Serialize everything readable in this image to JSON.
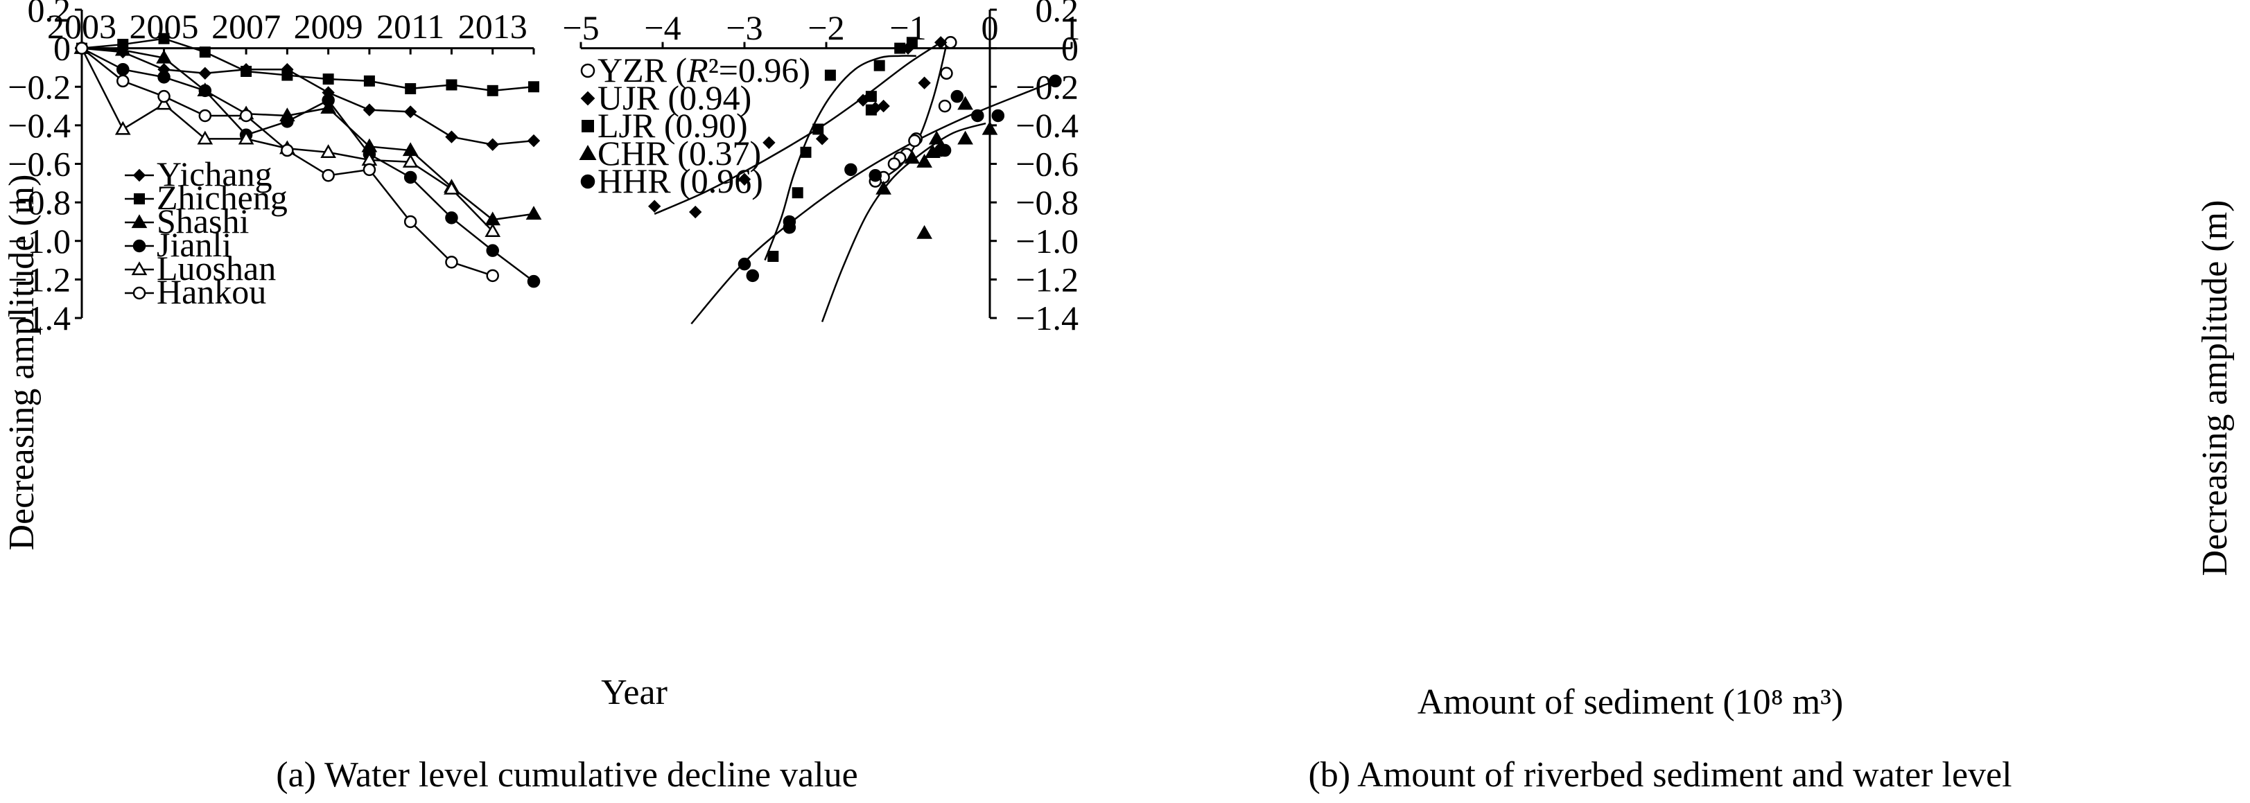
{
  "chart_data": [
    {
      "type": "line",
      "caption": "(a) Water level cumulative decline value",
      "xlabel": "Year",
      "ylabel": "Decreasing amplitude (m)",
      "xlim": [
        2003,
        2014
      ],
      "ylim": [
        -1.4,
        0.2
      ],
      "x_ticks": [
        "2003",
        "2005",
        "2007",
        "2009",
        "2011",
        "2013"
      ],
      "y_ticks": [
        "0.2",
        "0",
        "−0.2",
        "−0.4",
        "−0.6",
        "−0.8",
        "−1.0",
        "−1.2",
        "−1.4"
      ],
      "x": [
        2003,
        2004,
        2005,
        2006,
        2007,
        2008,
        2009,
        2010,
        2011,
        2012,
        2013,
        2014
      ],
      "series": [
        {
          "name": "Yichang",
          "marker": "diamond",
          "values": [
            0,
            -0.02,
            -0.11,
            -0.13,
            -0.11,
            -0.11,
            -0.23,
            -0.32,
            -0.33,
            -0.46,
            -0.5,
            -0.48
          ]
        },
        {
          "name": "Zhicheng",
          "marker": "square",
          "values": [
            0,
            0.02,
            0.05,
            -0.02,
            -0.12,
            -0.14,
            -0.16,
            -0.17,
            -0.21,
            -0.19,
            -0.22,
            -0.2
          ]
        },
        {
          "name": "Shashi",
          "marker": "triangle",
          "values": [
            0,
            -0.01,
            -0.05,
            -0.22,
            -0.34,
            -0.35,
            -0.31,
            -0.51,
            -0.53,
            -0.72,
            -0.89,
            -0.86
          ]
        },
        {
          "name": "Jianli",
          "marker": "circle",
          "values": [
            0,
            -0.11,
            -0.15,
            -0.22,
            -0.45,
            -0.38,
            -0.27,
            -0.55,
            -0.67,
            -0.88,
            -1.05,
            -1.21
          ]
        },
        {
          "name": "Luoshan",
          "marker": "triangle-open",
          "values": [
            0,
            -0.42,
            -0.29,
            -0.47,
            -0.47,
            -0.52,
            -0.54,
            -0.58,
            -0.59,
            -0.73,
            -0.95,
            null
          ]
        },
        {
          "name": "Hankou",
          "marker": "circle-open",
          "values": [
            0,
            -0.17,
            -0.25,
            -0.35,
            -0.35,
            -0.53,
            -0.66,
            -0.63,
            -0.9,
            -1.11,
            -1.18,
            null
          ]
        }
      ]
    },
    {
      "type": "scatter",
      "caption": "(b) Amount of riverbed sediment and water level",
      "xlabel": "Amount of sediment (10⁸ m³)",
      "ylabel": "Decreasing amplitude (m)",
      "xlim": [
        -5,
        1
      ],
      "ylim": [
        -1.4,
        0.2
      ],
      "x_ticks": [
        "−5",
        "−4",
        "−3",
        "−2",
        "−1",
        "0",
        "1"
      ],
      "y_ticks": [
        "0.2",
        "0",
        "−0.2",
        "−0.4",
        "−0.6",
        "−0.8",
        "−1.0",
        "−1.2",
        "−1.4"
      ],
      "series": [
        {
          "name": "YZR",
          "legend_label": "YZR (R²=0.96)",
          "marker": "circle-open",
          "points": [
            [
              -0.48,
              0.03
            ],
            [
              -0.53,
              -0.13
            ],
            [
              -0.55,
              -0.3
            ],
            [
              -0.9,
              -0.47
            ],
            [
              -0.92,
              -0.48
            ],
            [
              -1.02,
              -0.55
            ],
            [
              -1.1,
              -0.57
            ],
            [
              -1.17,
              -0.6
            ],
            [
              -1.3,
              -0.67
            ],
            [
              -1.4,
              -0.69
            ]
          ],
          "fit": [
            [
              -0.52,
              0.04
            ],
            [
              -0.6,
              -0.11
            ],
            [
              -0.7,
              -0.27
            ],
            [
              -0.85,
              -0.45
            ],
            [
              -1.05,
              -0.59
            ],
            [
              -1.25,
              -0.66
            ],
            [
              -1.4,
              -0.69
            ]
          ]
        },
        {
          "name": "UJR",
          "legend_label": "UJR (0.94)",
          "marker": "diamond",
          "points": [
            [
              -4.1,
              -0.82
            ],
            [
              -3.6,
              -0.85
            ],
            [
              -3.0,
              -0.68
            ],
            [
              -2.7,
              -0.49
            ],
            [
              -2.05,
              -0.47
            ],
            [
              -1.55,
              -0.27
            ],
            [
              -1.4,
              -0.31
            ],
            [
              -1.3,
              -0.3
            ],
            [
              -1.0,
              0.0
            ],
            [
              -0.8,
              -0.18
            ],
            [
              -0.6,
              0.03
            ]
          ],
          "fit": [
            [
              -4.1,
              -0.86
            ],
            [
              -3.5,
              -0.75
            ],
            [
              -3.0,
              -0.64
            ],
            [
              -2.5,
              -0.52
            ],
            [
              -2.0,
              -0.39
            ],
            [
              -1.5,
              -0.24
            ],
            [
              -1.0,
              -0.08
            ],
            [
              -0.6,
              0.03
            ]
          ]
        },
        {
          "name": "LJR",
          "legend_label": "LJR (0.90)",
          "marker": "square",
          "points": [
            [
              -2.65,
              -1.08
            ],
            [
              -2.45,
              -0.92
            ],
            [
              -2.35,
              -0.75
            ],
            [
              -2.25,
              -0.54
            ],
            [
              -2.1,
              -0.42
            ],
            [
              -1.95,
              -0.14
            ],
            [
              -1.45,
              -0.32
            ],
            [
              -1.45,
              -0.25
            ],
            [
              -1.35,
              -0.09
            ],
            [
              -1.1,
              0.0
            ],
            [
              -0.95,
              0.03
            ]
          ],
          "fit": [
            [
              -2.75,
              -1.1
            ],
            [
              -2.55,
              -0.88
            ],
            [
              -2.4,
              -0.66
            ],
            [
              -2.2,
              -0.44
            ],
            [
              -1.95,
              -0.25
            ],
            [
              -1.65,
              -0.11
            ],
            [
              -1.35,
              -0.05
            ],
            [
              -1.1,
              -0.04
            ],
            [
              -0.9,
              -0.04
            ]
          ]
        },
        {
          "name": "CHR",
          "legend_label": "CHR (0.37)",
          "marker": "triangle",
          "points": [
            [
              -1.3,
              -0.73
            ],
            [
              -0.8,
              -0.96
            ],
            [
              -0.95,
              -0.57
            ],
            [
              -0.8,
              -0.59
            ],
            [
              -0.7,
              -0.54
            ],
            [
              -0.65,
              -0.47
            ],
            [
              -0.6,
              -0.53
            ],
            [
              -0.3,
              -0.29
            ],
            [
              -0.3,
              -0.47
            ],
            [
              0.0,
              -0.42
            ]
          ],
          "fit": [
            [
              -2.05,
              -1.42
            ],
            [
              -1.8,
              -1.14
            ],
            [
              -1.5,
              -0.86
            ],
            [
              -1.2,
              -0.68
            ],
            [
              -0.85,
              -0.55
            ],
            [
              -0.45,
              -0.44
            ],
            [
              -0.05,
              -0.39
            ]
          ]
        },
        {
          "name": "HHR",
          "legend_label": "HHR (0.96)",
          "marker": "circle",
          "points": [
            [
              -3.0,
              -1.12
            ],
            [
              -2.9,
              -1.18
            ],
            [
              -2.45,
              -0.9
            ],
            [
              -2.45,
              -0.93
            ],
            [
              -1.7,
              -0.63
            ],
            [
              -1.4,
              -0.66
            ],
            [
              -0.6,
              -0.53
            ],
            [
              -0.55,
              -0.53
            ],
            [
              -0.4,
              -0.25
            ],
            [
              -0.15,
              -0.35
            ],
            [
              0.1,
              -0.35
            ],
            [
              0.8,
              -0.17
            ]
          ],
          "fit": [
            [
              -3.65,
              -1.43
            ],
            [
              -3.0,
              -1.11
            ],
            [
              -2.3,
              -0.86
            ],
            [
              -1.6,
              -0.65
            ],
            [
              -0.9,
              -0.48
            ],
            [
              -0.2,
              -0.34
            ],
            [
              0.5,
              -0.22
            ],
            [
              0.85,
              -0.16
            ]
          ]
        }
      ]
    }
  ]
}
